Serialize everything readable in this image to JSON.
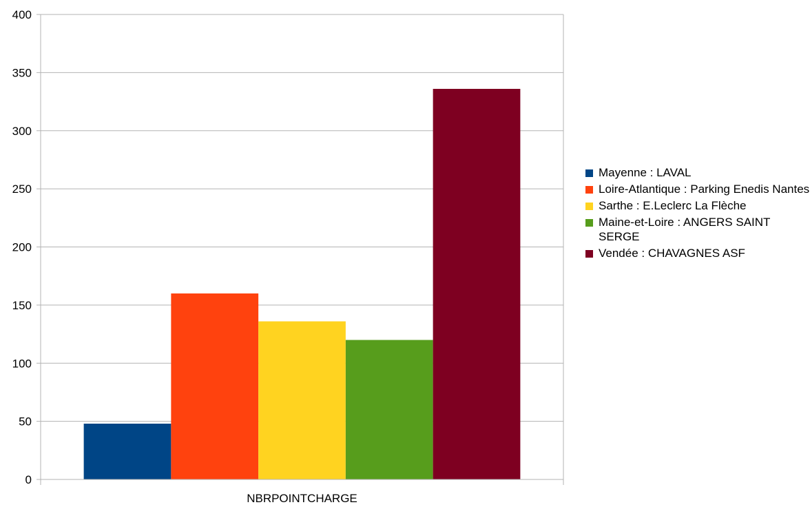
{
  "chart_data": {
    "type": "bar",
    "title": "",
    "xlabel": "",
    "ylabel": "",
    "categories": [
      "NBRPOINTCHARGE"
    ],
    "ylim": [
      0,
      400
    ],
    "yticks": [
      0,
      50,
      100,
      150,
      200,
      250,
      300,
      350,
      400
    ],
    "grid": true,
    "legend_position": "right",
    "series": [
      {
        "name": "Mayenne : LAVAL",
        "color": "#004586",
        "values": [
          48
        ]
      },
      {
        "name": "Loire-Atlantique : Parking Enedis Nantes",
        "color": "#ff420e",
        "values": [
          160
        ]
      },
      {
        "name": "Sarthe : E.Leclerc La Flèche",
        "color": "#ffd320",
        "values": [
          136
        ]
      },
      {
        "name": "Maine-et-Loire : ANGERS SAINT SERGE",
        "color": "#579d1c",
        "values": [
          120
        ]
      },
      {
        "name": "Vendée : CHAVAGNES ASF",
        "color": "#7e0021",
        "values": [
          336
        ]
      }
    ]
  }
}
